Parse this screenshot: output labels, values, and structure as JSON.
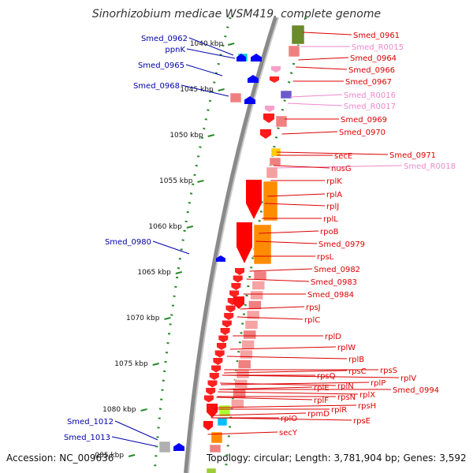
{
  "title": "Sinorhizobium medicae WSM419, complete genome",
  "footer": {
    "accession": "Accession: NC_009636",
    "topology": "Topology: circular; Length: 3,781,904 bp; Genes: 3,592"
  },
  "colors": {
    "plus_strand_label": "#0000aa",
    "minus_strand_label": "#dd0000",
    "rna_label": "#ee88cc",
    "tick_green": "#2a8a2a"
  },
  "ruler_ticks": [
    "1040 kbp",
    "1045 kbp",
    "1050 kbp",
    "1055 kbp",
    "1060 kbp",
    "1065 kbp",
    "1070 kbp",
    "1075 kbp",
    "1080 kbp",
    ".085 kbp"
  ],
  "left_labels": [
    "Smed_0962",
    "ppnK",
    "Smed_0965",
    "Smed_0968",
    "Smed_0980",
    "Smed_1012",
    "Smed_1013"
  ],
  "right_labels": [
    {
      "text": "Smed_0961",
      "kind": "gene"
    },
    {
      "text": "Smed_R0015",
      "kind": "rna"
    },
    {
      "text": "Smed_0964",
      "kind": "gene"
    },
    {
      "text": "Smed_0966",
      "kind": "gene"
    },
    {
      "text": "Smed_0967",
      "kind": "gene"
    },
    {
      "text": "Smed_R0016",
      "kind": "rna"
    },
    {
      "text": "Smed_R0017",
      "kind": "rna"
    },
    {
      "text": "Smed_0969",
      "kind": "gene"
    },
    {
      "text": "Smed_0970",
      "kind": "gene"
    },
    {
      "text": "Smed_0971",
      "kind": "gene"
    },
    {
      "text": "secE",
      "kind": "gene"
    },
    {
      "text": "Smed_R0018",
      "kind": "rna"
    },
    {
      "text": "nusG",
      "kind": "gene"
    },
    {
      "text": "rplK",
      "kind": "gene"
    },
    {
      "text": "rplA",
      "kind": "gene"
    },
    {
      "text": "rplJ",
      "kind": "gene"
    },
    {
      "text": "rplL",
      "kind": "gene"
    },
    {
      "text": "rpoB",
      "kind": "gene"
    },
    {
      "text": "Smed_0979",
      "kind": "gene"
    },
    {
      "text": "rpsL",
      "kind": "gene"
    },
    {
      "text": "Smed_0982",
      "kind": "gene"
    },
    {
      "text": "Smed_0983",
      "kind": "gene"
    },
    {
      "text": "Smed_0984",
      "kind": "gene"
    },
    {
      "text": "rpsJ",
      "kind": "gene"
    },
    {
      "text": "rplC",
      "kind": "gene"
    },
    {
      "text": "rplD",
      "kind": "gene"
    },
    {
      "text": "rplW",
      "kind": "gene"
    },
    {
      "text": "rplB",
      "kind": "gene"
    },
    {
      "text": "rpsS",
      "kind": "gene"
    },
    {
      "text": "rpsC",
      "kind": "gene"
    },
    {
      "text": "rplV",
      "kind": "gene"
    },
    {
      "text": "rpsQ",
      "kind": "gene"
    },
    {
      "text": "rplP",
      "kind": "gene"
    },
    {
      "text": "rplN",
      "kind": "gene"
    },
    {
      "text": "Smed_0994",
      "kind": "gene"
    },
    {
      "text": "rplE",
      "kind": "gene"
    },
    {
      "text": "rplX",
      "kind": "gene"
    },
    {
      "text": "rpsN",
      "kind": "gene"
    },
    {
      "text": "rpsH",
      "kind": "gene"
    },
    {
      "text": "rplF",
      "kind": "gene"
    },
    {
      "text": "rplR",
      "kind": "gene"
    },
    {
      "text": "rpmD",
      "kind": "gene"
    },
    {
      "text": "rpsE",
      "kind": "gene"
    },
    {
      "text": "rplO",
      "kind": "gene"
    },
    {
      "text": "secY",
      "kind": "gene"
    }
  ]
}
